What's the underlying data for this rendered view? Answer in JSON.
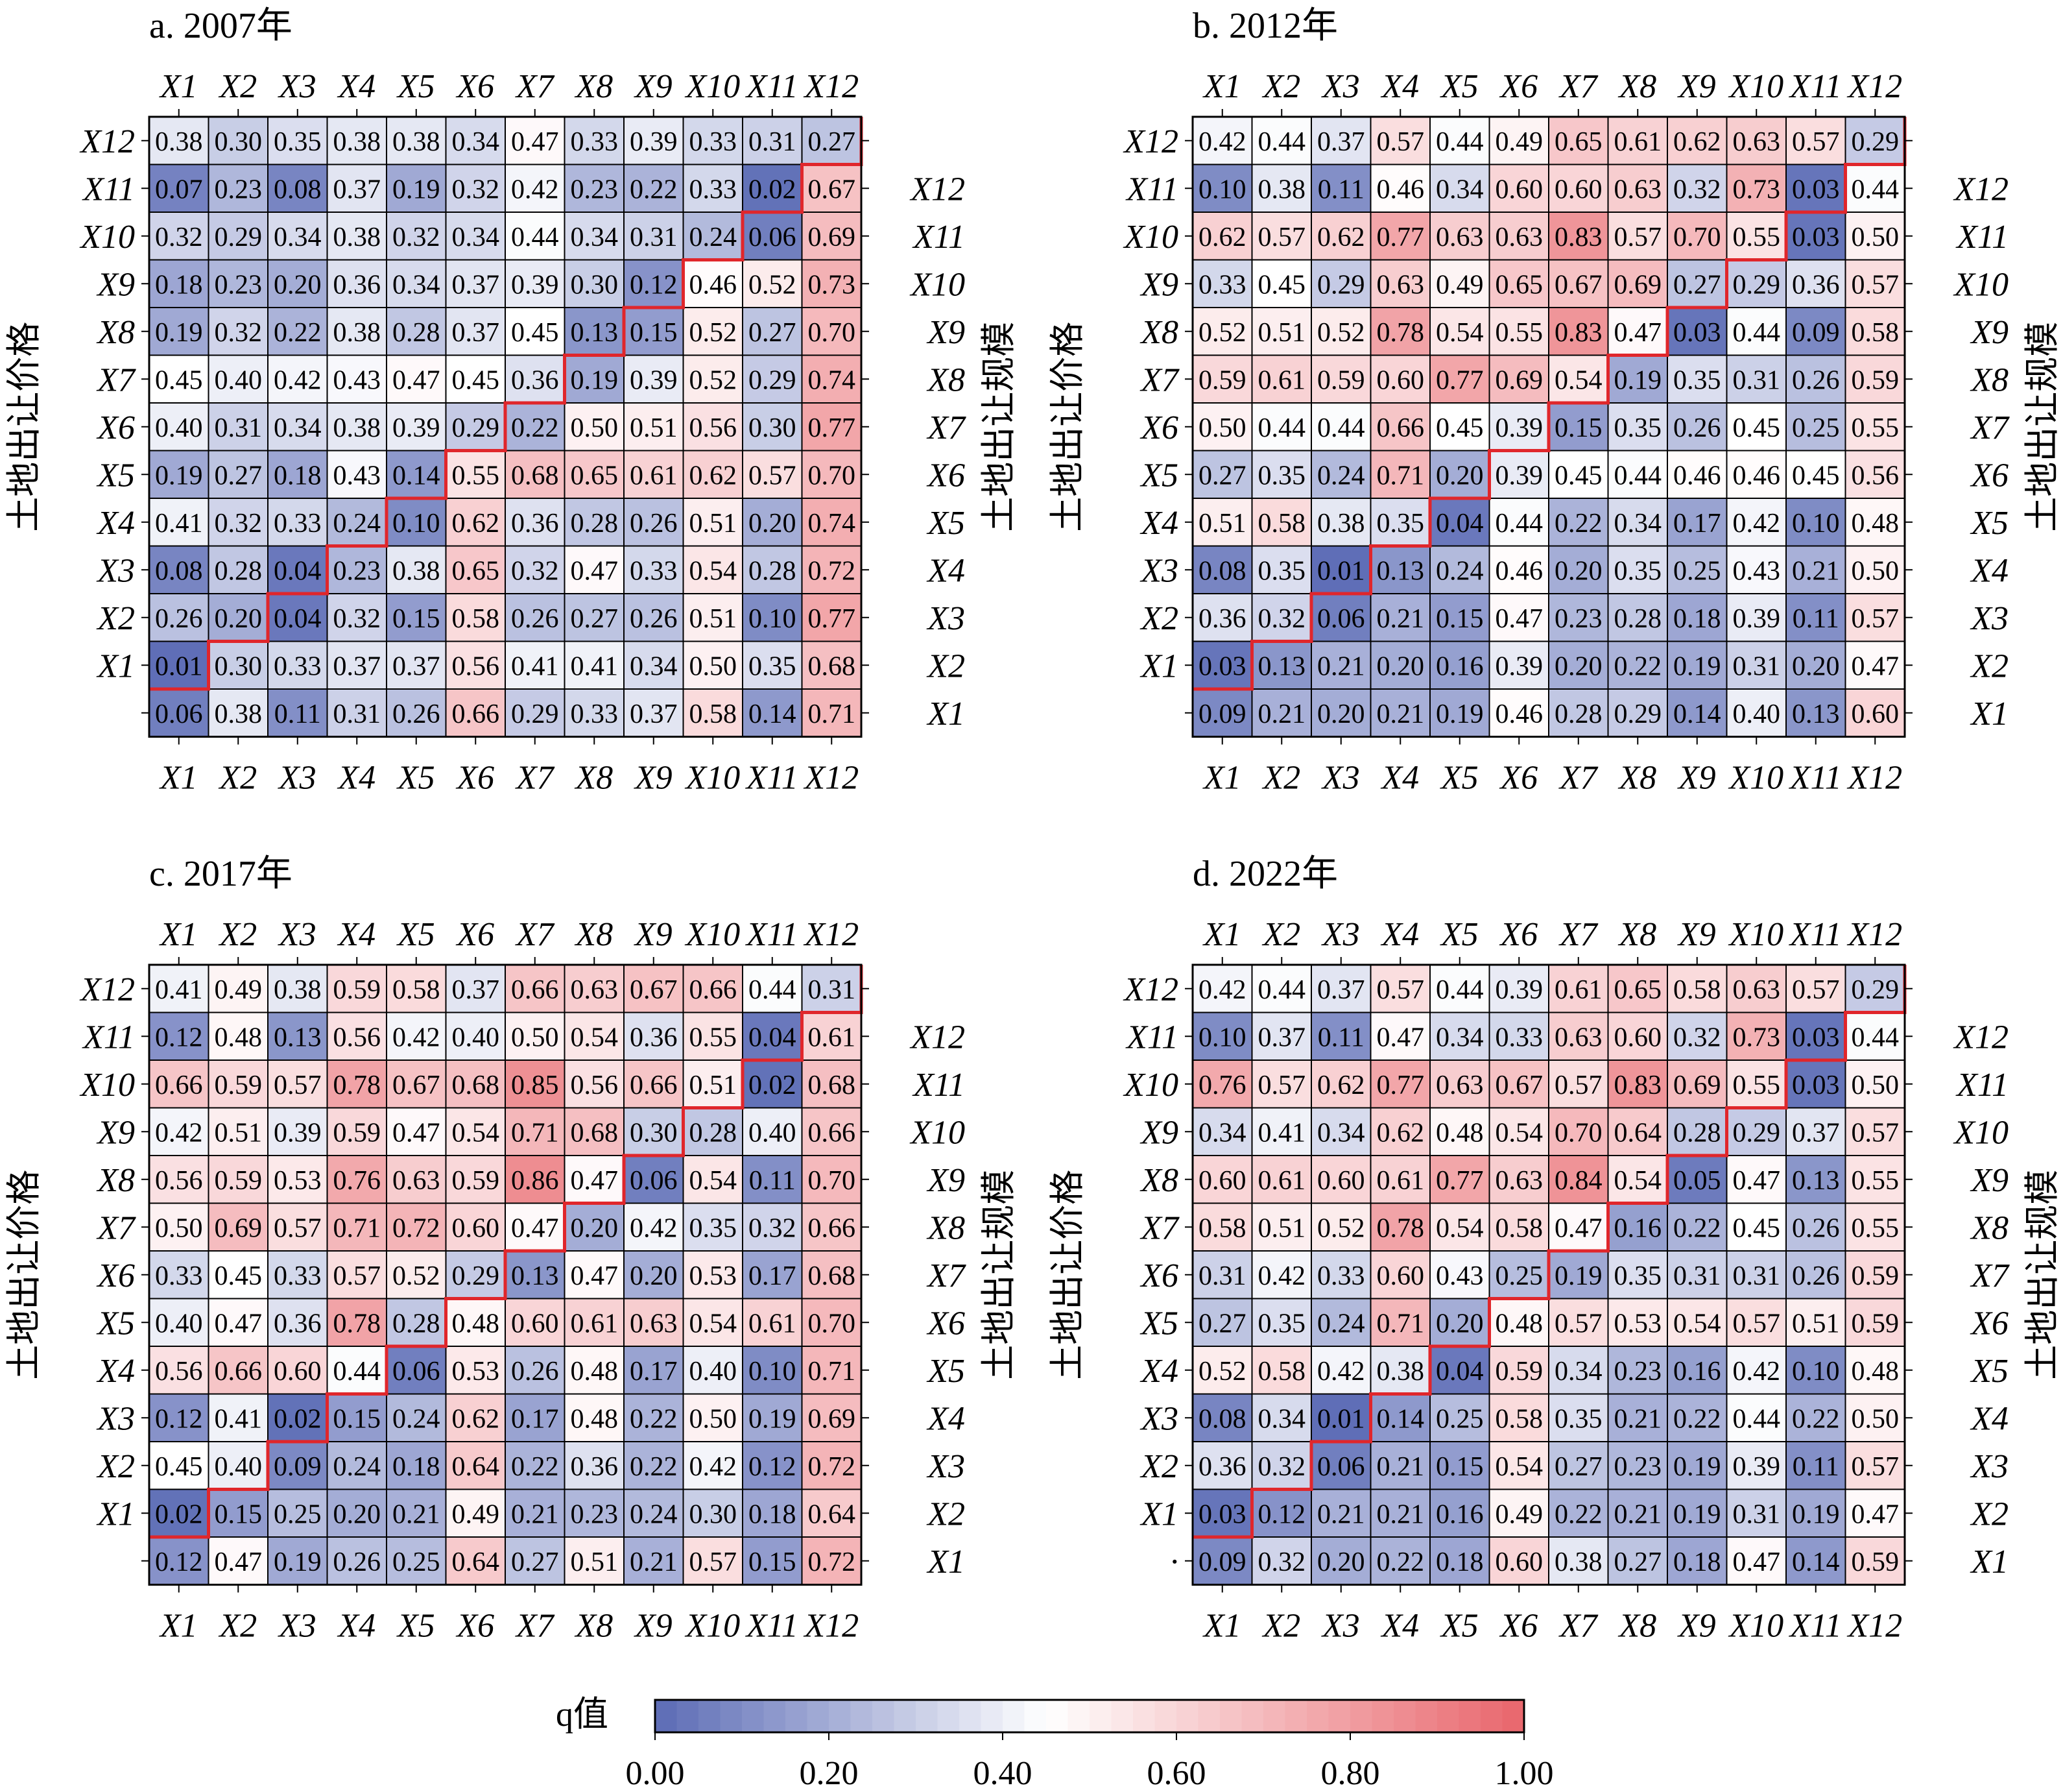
{
  "figure": {
    "colorbar_label": "q值",
    "colorbar_ticks": [
      "0.00",
      "0.20",
      "0.40",
      "0.60",
      "0.80",
      "1.00"
    ],
    "colors": {
      "low": "#5b6bb5",
      "mid": "#ffffff",
      "high": "#e8666c",
      "diagonal_line": "#e0262b",
      "cell_border": "#000000"
    }
  },
  "chart_data": [
    {
      "type": "heatmap",
      "title": "a. 2007年",
      "left_label": "土地出让价格",
      "right_label": "土地出让规模",
      "columns": [
        "X1",
        "X2",
        "X3",
        "X4",
        "X5",
        "X6",
        "X7",
        "X8",
        "X9",
        "X10",
        "X11",
        "X12"
      ],
      "left_rows": [
        "X12",
        "X11",
        "X10",
        "X9",
        "X8",
        "X7",
        "X6",
        "X5",
        "X4",
        "X3",
        "X2",
        "X1",
        ""
      ],
      "right_rows": [
        "",
        "X12",
        "X11",
        "X10",
        "X9",
        "X8",
        "X7",
        "X6",
        "X5",
        "X4",
        "X3",
        "X2",
        "X1"
      ],
      "values": [
        [
          0.38,
          0.3,
          0.35,
          0.38,
          0.38,
          0.34,
          0.47,
          0.33,
          0.39,
          0.33,
          0.31,
          0.27
        ],
        [
          0.07,
          0.23,
          0.08,
          0.37,
          0.19,
          0.32,
          0.42,
          0.23,
          0.22,
          0.33,
          0.02,
          0.67
        ],
        [
          0.32,
          0.29,
          0.34,
          0.38,
          0.32,
          0.34,
          0.44,
          0.34,
          0.31,
          0.24,
          0.06,
          0.69
        ],
        [
          0.18,
          0.23,
          0.2,
          0.36,
          0.34,
          0.37,
          0.39,
          0.3,
          0.12,
          0.46,
          0.52,
          0.73
        ],
        [
          0.19,
          0.32,
          0.22,
          0.38,
          0.28,
          0.37,
          0.45,
          0.13,
          0.15,
          0.52,
          0.27,
          0.7
        ],
        [
          0.45,
          0.4,
          0.42,
          0.43,
          0.47,
          0.45,
          0.36,
          0.19,
          0.39,
          0.52,
          0.29,
          0.74
        ],
        [
          0.4,
          0.31,
          0.34,
          0.38,
          0.39,
          0.29,
          0.22,
          0.5,
          0.51,
          0.56,
          0.3,
          0.77
        ],
        [
          0.19,
          0.27,
          0.18,
          0.43,
          0.14,
          0.55,
          0.68,
          0.65,
          0.61,
          0.62,
          0.57,
          0.7
        ],
        [
          0.41,
          0.32,
          0.33,
          0.24,
          0.1,
          0.62,
          0.36,
          0.28,
          0.26,
          0.51,
          0.2,
          0.74
        ],
        [
          0.08,
          0.28,
          0.04,
          0.23,
          0.38,
          0.65,
          0.32,
          0.47,
          0.33,
          0.54,
          0.28,
          0.72
        ],
        [
          0.26,
          0.2,
          0.04,
          0.32,
          0.15,
          0.58,
          0.26,
          0.27,
          0.26,
          0.51,
          0.1,
          0.77
        ],
        [
          0.01,
          0.3,
          0.33,
          0.37,
          0.37,
          0.56,
          0.41,
          0.41,
          0.34,
          0.5,
          0.35,
          0.68
        ],
        [
          0.06,
          0.38,
          0.11,
          0.31,
          0.26,
          0.66,
          0.29,
          0.33,
          0.37,
          0.58,
          0.14,
          0.71
        ]
      ]
    },
    {
      "type": "heatmap",
      "title": "b. 2012年",
      "left_label": "土地出让价格",
      "right_label": "土地出让规模",
      "columns": [
        "X1",
        "X2",
        "X3",
        "X4",
        "X5",
        "X6",
        "X7",
        "X8",
        "X9",
        "X10",
        "X11",
        "X12"
      ],
      "left_rows": [
        "X12",
        "X11",
        "X10",
        "X9",
        "X8",
        "X7",
        "X6",
        "X5",
        "X4",
        "X3",
        "X2",
        "X1",
        ""
      ],
      "right_rows": [
        "",
        "X12",
        "X11",
        "X10",
        "X9",
        "X8",
        "X7",
        "X6",
        "X5",
        "X4",
        "X3",
        "X2",
        "X1"
      ],
      "values": [
        [
          0.42,
          0.44,
          0.37,
          0.57,
          0.44,
          0.49,
          0.65,
          0.61,
          0.62,
          0.63,
          0.57,
          0.29
        ],
        [
          0.1,
          0.38,
          0.11,
          0.46,
          0.34,
          0.6,
          0.6,
          0.63,
          0.32,
          0.73,
          0.03,
          0.44
        ],
        [
          0.62,
          0.57,
          0.62,
          0.77,
          0.63,
          0.63,
          0.83,
          0.57,
          0.7,
          0.55,
          0.03,
          0.5
        ],
        [
          0.33,
          0.45,
          0.29,
          0.63,
          0.49,
          0.65,
          0.67,
          0.69,
          0.27,
          0.29,
          0.36,
          0.57
        ],
        [
          0.52,
          0.51,
          0.52,
          0.78,
          0.54,
          0.55,
          0.83,
          0.47,
          0.03,
          0.44,
          0.09,
          0.58
        ],
        [
          0.59,
          0.61,
          0.59,
          0.6,
          0.77,
          0.69,
          0.54,
          0.19,
          0.35,
          0.31,
          0.26,
          0.59
        ],
        [
          0.5,
          0.44,
          0.44,
          0.66,
          0.45,
          0.39,
          0.15,
          0.35,
          0.26,
          0.45,
          0.25,
          0.55
        ],
        [
          0.27,
          0.35,
          0.24,
          0.71,
          0.2,
          0.39,
          0.45,
          0.44,
          0.46,
          0.46,
          0.45,
          0.56
        ],
        [
          0.51,
          0.58,
          0.38,
          0.35,
          0.04,
          0.44,
          0.22,
          0.34,
          0.17,
          0.42,
          0.1,
          0.48
        ],
        [
          0.08,
          0.35,
          0.01,
          0.13,
          0.24,
          0.46,
          0.2,
          0.35,
          0.25,
          0.43,
          0.21,
          0.5
        ],
        [
          0.36,
          0.32,
          0.06,
          0.21,
          0.15,
          0.47,
          0.23,
          0.28,
          0.18,
          0.39,
          0.11,
          0.57
        ],
        [
          0.03,
          0.13,
          0.21,
          0.2,
          0.16,
          0.39,
          0.2,
          0.22,
          0.19,
          0.31,
          0.2,
          0.47
        ],
        [
          0.09,
          0.21,
          0.2,
          0.21,
          0.19,
          0.46,
          0.28,
          0.29,
          0.14,
          0.4,
          0.13,
          0.6
        ]
      ]
    },
    {
      "type": "heatmap",
      "title": "c. 2017年",
      "left_label": "土地出让价格",
      "right_label": "土地出让规模",
      "columns": [
        "X1",
        "X2",
        "X3",
        "X4",
        "X5",
        "X6",
        "X7",
        "X8",
        "X9",
        "X10",
        "X11",
        "X12"
      ],
      "left_rows": [
        "X12",
        "X11",
        "X10",
        "X9",
        "X8",
        "X7",
        "X6",
        "X5",
        "X4",
        "X3",
        "X2",
        "X1",
        ""
      ],
      "right_rows": [
        "",
        "X12",
        "X11",
        "X10",
        "X9",
        "X8",
        "X7",
        "X6",
        "X5",
        "X4",
        "X3",
        "X2",
        "X1"
      ],
      "values": [
        [
          0.41,
          0.49,
          0.38,
          0.59,
          0.58,
          0.37,
          0.66,
          0.63,
          0.67,
          0.66,
          0.44,
          0.31
        ],
        [
          0.12,
          0.48,
          0.13,
          0.56,
          0.42,
          0.4,
          0.5,
          0.54,
          0.36,
          0.55,
          0.04,
          0.61
        ],
        [
          0.66,
          0.59,
          0.57,
          0.78,
          0.67,
          0.68,
          0.85,
          0.56,
          0.66,
          0.51,
          0.02,
          0.68
        ],
        [
          0.42,
          0.51,
          0.39,
          0.59,
          0.47,
          0.54,
          0.71,
          0.68,
          0.3,
          0.28,
          0.4,
          0.66
        ],
        [
          0.56,
          0.59,
          0.53,
          0.76,
          0.63,
          0.59,
          0.86,
          0.47,
          0.06,
          0.54,
          0.11,
          0.7
        ],
        [
          0.5,
          0.69,
          0.57,
          0.71,
          0.72,
          0.6,
          0.47,
          0.2,
          0.42,
          0.35,
          0.32,
          0.66
        ],
        [
          0.33,
          0.45,
          0.33,
          0.57,
          0.52,
          0.29,
          0.13,
          0.47,
          0.2,
          0.53,
          0.17,
          0.68
        ],
        [
          0.4,
          0.47,
          0.36,
          0.78,
          0.28,
          0.48,
          0.6,
          0.61,
          0.63,
          0.54,
          0.61,
          0.7
        ],
        [
          0.56,
          0.66,
          0.6,
          0.44,
          0.06,
          0.53,
          0.26,
          0.48,
          0.17,
          0.4,
          0.1,
          0.71
        ],
        [
          0.12,
          0.41,
          0.02,
          0.15,
          0.24,
          0.62,
          0.17,
          0.48,
          0.22,
          0.5,
          0.19,
          0.69
        ],
        [
          0.45,
          0.4,
          0.09,
          0.24,
          0.18,
          0.64,
          0.22,
          0.36,
          0.22,
          0.42,
          0.12,
          0.72
        ],
        [
          0.02,
          0.15,
          0.25,
          0.2,
          0.21,
          0.49,
          0.21,
          0.23,
          0.24,
          0.3,
          0.18,
          0.64
        ],
        [
          0.12,
          0.47,
          0.19,
          0.26,
          0.25,
          0.64,
          0.27,
          0.51,
          0.21,
          0.57,
          0.15,
          0.72
        ]
      ]
    },
    {
      "type": "heatmap",
      "title": "d. 2022年",
      "left_label": "土地出让价格",
      "right_label": "土地出让规模",
      "columns": [
        "X1",
        "X2",
        "X3",
        "X4",
        "X5",
        "X6",
        "X7",
        "X8",
        "X9",
        "X10",
        "X11",
        "X12"
      ],
      "left_rows": [
        "X12",
        "X11",
        "X10",
        "X9",
        "X8",
        "X7",
        "X6",
        "X5",
        "X4",
        "X3",
        "X2",
        "X1",
        "·"
      ],
      "right_rows": [
        "",
        "X12",
        "X11",
        "X10",
        "X9",
        "X8",
        "X7",
        "X6",
        "X5",
        "X4",
        "X3",
        "X2",
        "X1"
      ],
      "values": [
        [
          0.42,
          0.44,
          0.37,
          0.57,
          0.44,
          0.39,
          0.61,
          0.65,
          0.58,
          0.63,
          0.57,
          0.29
        ],
        [
          0.1,
          0.37,
          0.11,
          0.47,
          0.34,
          0.33,
          0.63,
          0.6,
          0.32,
          0.73,
          0.03,
          0.44
        ],
        [
          0.76,
          0.57,
          0.62,
          0.77,
          0.63,
          0.67,
          0.57,
          0.83,
          0.69,
          0.55,
          0.03,
          0.5
        ],
        [
          0.34,
          0.41,
          0.34,
          0.62,
          0.48,
          0.54,
          0.7,
          0.64,
          0.28,
          0.29,
          0.37,
          0.57
        ],
        [
          0.6,
          0.61,
          0.6,
          0.61,
          0.77,
          0.63,
          0.84,
          0.54,
          0.05,
          0.47,
          0.13,
          0.55
        ],
        [
          0.58,
          0.51,
          0.52,
          0.78,
          0.54,
          0.58,
          0.47,
          0.16,
          0.22,
          0.45,
          0.26,
          0.55
        ],
        [
          0.31,
          0.42,
          0.33,
          0.6,
          0.43,
          0.25,
          0.19,
          0.35,
          0.31,
          0.31,
          0.26,
          0.59
        ],
        [
          0.27,
          0.35,
          0.24,
          0.71,
          0.2,
          0.48,
          0.57,
          0.53,
          0.54,
          0.57,
          0.51,
          0.59
        ],
        [
          0.52,
          0.58,
          0.42,
          0.38,
          0.04,
          0.59,
          0.34,
          0.23,
          0.16,
          0.42,
          0.1,
          0.48
        ],
        [
          0.08,
          0.34,
          0.01,
          0.14,
          0.25,
          0.58,
          0.35,
          0.21,
          0.22,
          0.44,
          0.22,
          0.5
        ],
        [
          0.36,
          0.32,
          0.06,
          0.21,
          0.15,
          0.54,
          0.27,
          0.23,
          0.19,
          0.39,
          0.11,
          0.57
        ],
        [
          0.03,
          0.12,
          0.21,
          0.21,
          0.16,
          0.49,
          0.22,
          0.21,
          0.19,
          0.31,
          0.19,
          0.47
        ],
        [
          0.09,
          0.32,
          0.2,
          0.22,
          0.18,
          0.6,
          0.38,
          0.27,
          0.18,
          0.47,
          0.14,
          0.59
        ]
      ]
    }
  ]
}
